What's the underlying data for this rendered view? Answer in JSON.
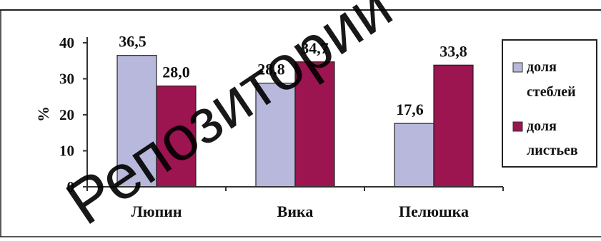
{
  "chart_data": {
    "type": "bar",
    "categories": [
      "Люпин",
      "Вика",
      "Пелюшка"
    ],
    "series": [
      {
        "name": "доля стеблей",
        "values": [
          36.5,
          28.8,
          17.6
        ],
        "labels": [
          "36,5",
          "28,8",
          "17,6"
        ],
        "color": "#B8B8DC"
      },
      {
        "name": "доля листьев",
        "values": [
          28.0,
          34.7,
          33.8
        ],
        "labels": [
          "28,0",
          "34,7",
          "33,8"
        ],
        "color": "#9C1450"
      }
    ],
    "xlabel": "",
    "ylabel": "%",
    "ylim": [
      0,
      40
    ],
    "yticks": [
      0,
      10,
      20,
      30,
      40
    ],
    "grid": false,
    "legend_position": "right",
    "legend_lines": [
      [
        "доля",
        "стеблей"
      ],
      [
        "доля",
        "листьев"
      ]
    ]
  },
  "watermark": "Репозиторий"
}
